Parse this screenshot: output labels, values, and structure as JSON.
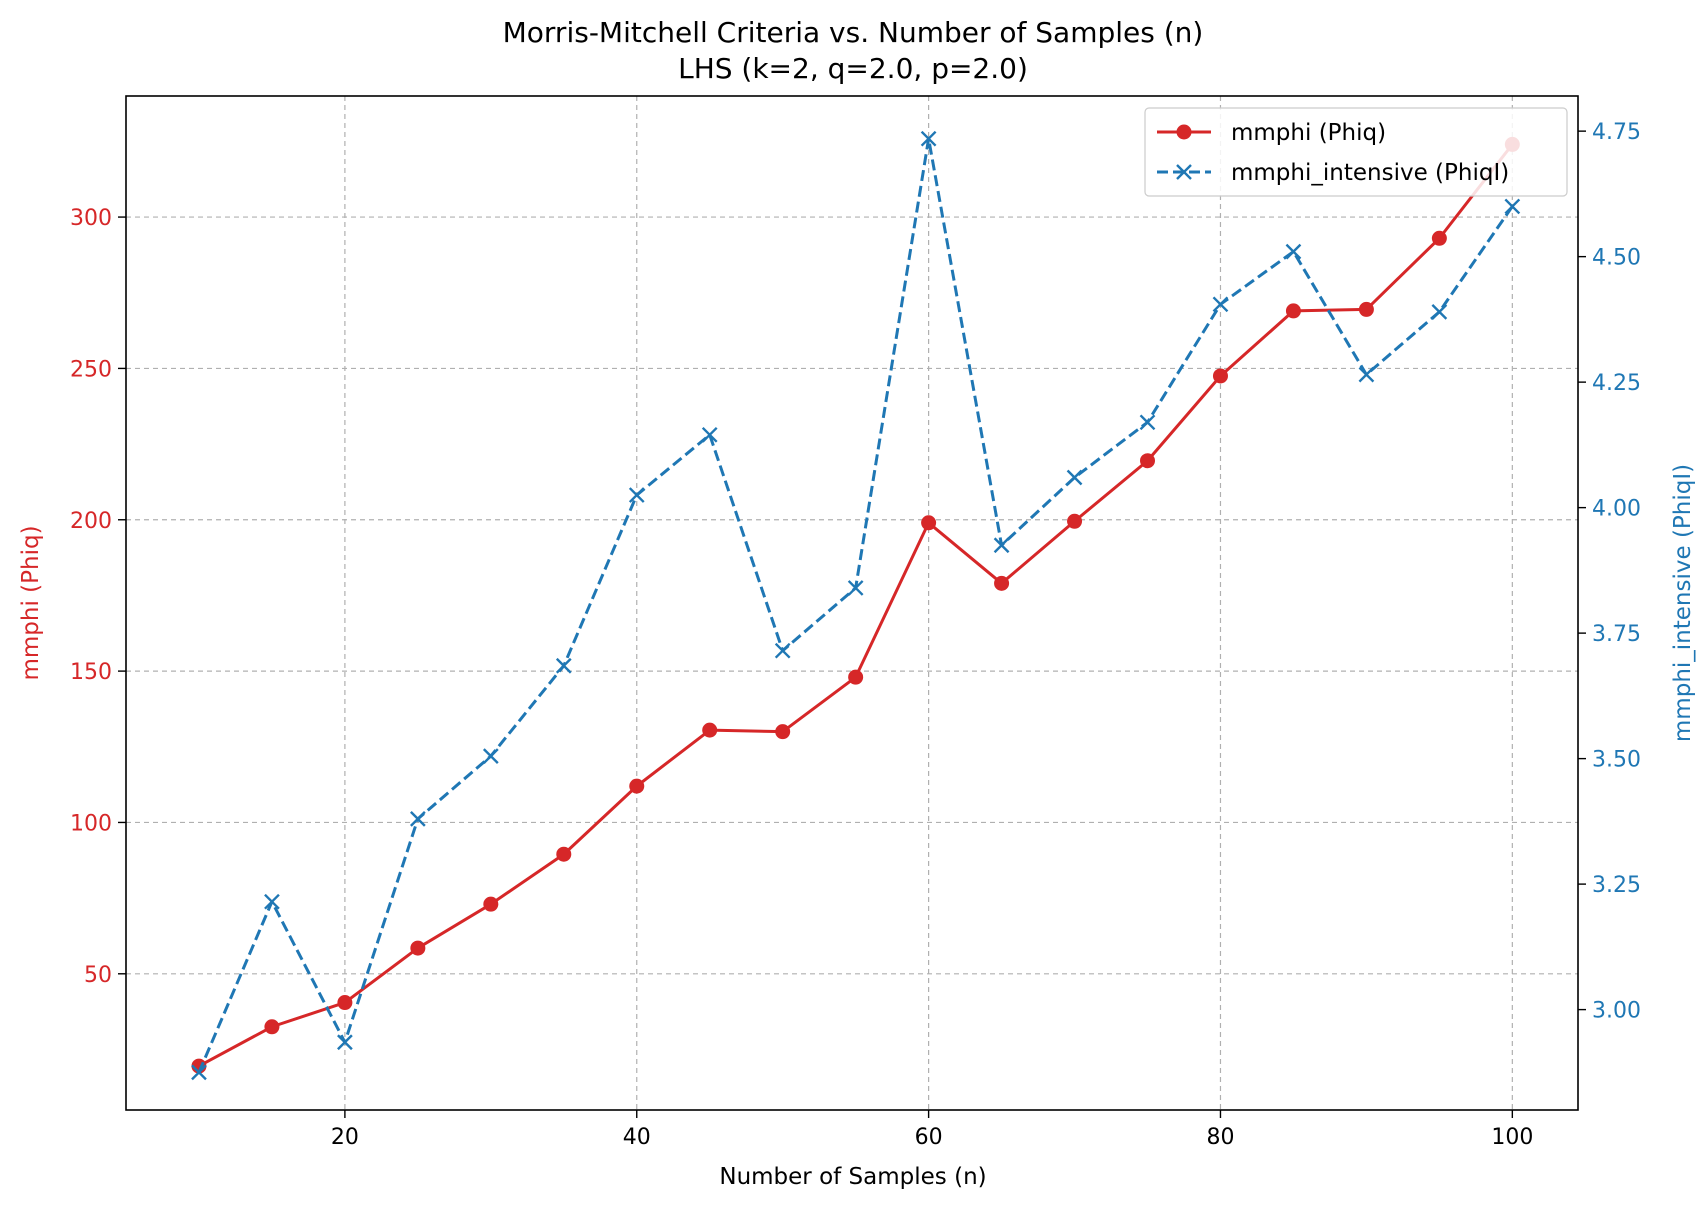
{
  "chart_data": {
    "type": "line",
    "title": "Morris-Mitchell Criteria vs. Number of Samples (n)",
    "subtitle": "LHS (k=2, q=2.0, p=2.0)",
    "xlabel": "Number of Samples (n)",
    "ylabel_left": "mmphi (Phiq)",
    "ylabel_right": "mmphi_intensive (PhiqI)",
    "x": [
      10,
      15,
      20,
      25,
      30,
      35,
      40,
      45,
      50,
      55,
      60,
      65,
      70,
      75,
      80,
      85,
      90,
      95,
      100
    ],
    "xlim": [
      5,
      104.5
    ],
    "xticks": [
      20,
      40,
      60,
      80,
      100
    ],
    "ylim_left": [
      5,
      340
    ],
    "yticks_left": [
      50,
      100,
      150,
      200,
      250,
      300
    ],
    "ylim_right": [
      2.8,
      4.82
    ],
    "yticks_right": [
      "3.00",
      "3.25",
      "3.50",
      "3.75",
      "4.00",
      "4.25",
      "4.50",
      "4.75"
    ],
    "grid": true,
    "legend_position": "top-right",
    "series": [
      {
        "name": "mmphi (Phiq)",
        "axis": "left",
        "color": "#d62728",
        "style": "solid",
        "marker": "circle",
        "values": [
          19.5,
          32.5,
          40.5,
          58.5,
          73,
          89.5,
          112,
          130.5,
          130,
          148,
          199,
          179,
          199.5,
          219.5,
          247.5,
          269,
          269.5,
          293,
          324
        ]
      },
      {
        "name": "mmphi_intensive (PhiqI)",
        "axis": "right",
        "color": "#1f77b4",
        "style": "dashed",
        "marker": "x",
        "values": [
          2.875,
          3.215,
          2.935,
          3.38,
          3.505,
          3.685,
          4.025,
          4.145,
          3.715,
          3.84,
          4.735,
          3.925,
          4.06,
          4.17,
          4.405,
          4.51,
          4.265,
          4.39,
          4.6
        ]
      }
    ],
    "colors": {
      "left_axis": "#d62728",
      "right_axis": "#1f77b4",
      "grid": "#b0b0b0"
    }
  }
}
